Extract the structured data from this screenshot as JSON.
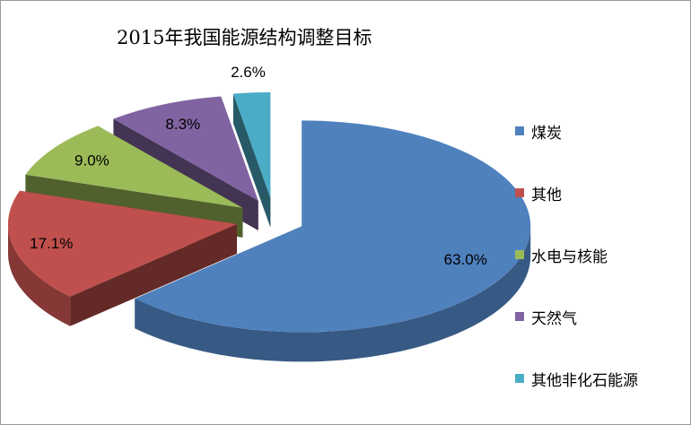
{
  "chart_data": {
    "type": "pie",
    "title": "2015年我国能源结构调整目标",
    "categories": [
      "煤炭",
      "其他",
      "水电与核能",
      "天然气",
      "其他非化石能源"
    ],
    "values": [
      63.0,
      17.1,
      9.0,
      8.3,
      2.6
    ],
    "value_labels": [
      "63.0%",
      "17.1%",
      "9.0%",
      "8.3%",
      "2.6%"
    ],
    "colors": [
      "#4f81bd",
      "#c0504d",
      "#9bbb59",
      "#8064a2",
      "#4bacc6"
    ],
    "legend_position": "right",
    "style": "3d-exploded"
  }
}
